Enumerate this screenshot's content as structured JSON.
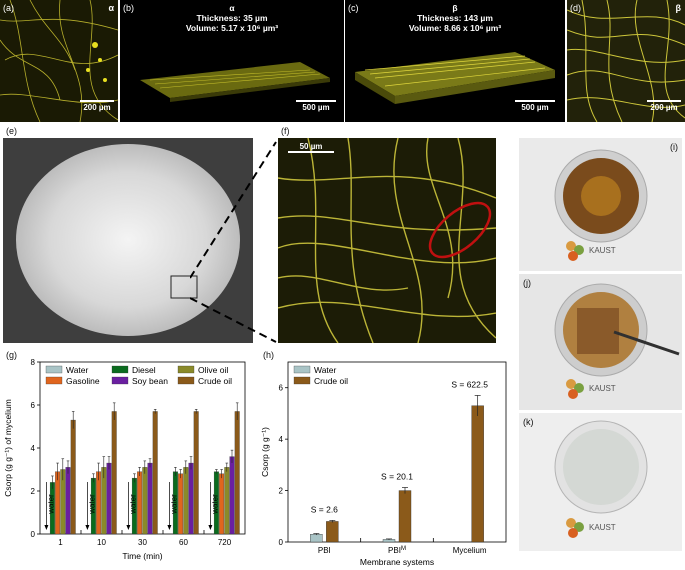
{
  "panels": {
    "a": {
      "label": "(a)",
      "tag": "α",
      "scale": "200 µm"
    },
    "b": {
      "label": "(b)",
      "tag": "α",
      "thickness": "Thickness: 35 µm",
      "volume": "Volume: 5.17 x 10⁶ µm³",
      "scale": "500 µm"
    },
    "c": {
      "label": "(c)",
      "tag": "β",
      "thickness": "Thickness: 143 µm",
      "volume": "Volume: 8.66 x 10⁶ µm³",
      "scale": "500 µm"
    },
    "d": {
      "label": "(d)",
      "tag": "β",
      "scale": "200 µm"
    },
    "e": {
      "label": "(e)"
    },
    "f": {
      "label": "(f)",
      "scale": "50 µm"
    },
    "g": {
      "label": "(g)"
    },
    "h": {
      "label": "(h)"
    },
    "i": {
      "label": "(i)",
      "logo": "KAUST"
    },
    "j": {
      "label": "(j)",
      "logo": "KAUST"
    },
    "k": {
      "label": "(k)",
      "logo": "KAUST"
    }
  },
  "colors": {
    "water": "#a9c4c6",
    "gasoline": "#e0651e",
    "diesel": "#0a6b1e",
    "soy_bean": "#6a1fa0",
    "olive_oil": "#8a8a2a",
    "crude_oil": "#8b5a1a",
    "fluorescence": "#e8e020"
  },
  "chart_data": [
    {
      "id": "g",
      "type": "bar",
      "ylabel": "Csorp (g g⁻¹) of mycelium",
      "xlabel": "Time (min)",
      "ylim": [
        0,
        8
      ],
      "yticks": [
        "0",
        "2",
        "4",
        "6",
        "8"
      ],
      "categories": [
        "1",
        "10",
        "30",
        "60",
        "720"
      ],
      "legend": [
        "Water",
        "Gasoline",
        "Diesel",
        "Soy bean",
        "Olive oil",
        "Crude oil"
      ],
      "annotation": "water",
      "series": [
        {
          "name": "Water",
          "values": [
            0,
            0,
            0,
            0,
            0
          ],
          "errors": [
            0,
            0,
            0,
            0,
            0
          ]
        },
        {
          "name": "Diesel",
          "values": [
            2.4,
            2.6,
            2.6,
            2.9,
            2.9
          ],
          "errors": [
            0.3,
            0.2,
            0.2,
            0.2,
            0.1
          ]
        },
        {
          "name": "Gasoline",
          "values": [
            2.9,
            2.9,
            2.9,
            2.8,
            2.8
          ],
          "errors": [
            0.4,
            0.4,
            0.2,
            0.2,
            0.2
          ]
        },
        {
          "name": "Olive oil",
          "values": [
            3.0,
            3.1,
            3.1,
            3.1,
            3.1
          ],
          "errors": [
            0.5,
            0.5,
            0.3,
            0.3,
            0.2
          ]
        },
        {
          "name": "Soy bean",
          "values": [
            3.1,
            3.3,
            3.3,
            3.3,
            3.6
          ],
          "errors": [
            0.3,
            0.3,
            0.2,
            0.3,
            0.3
          ]
        },
        {
          "name": "Crude oil",
          "values": [
            5.3,
            5.7,
            5.7,
            5.7,
            5.7
          ],
          "errors": [
            0.4,
            0.4,
            0.1,
            0.1,
            0.4
          ]
        }
      ]
    },
    {
      "id": "h",
      "type": "bar",
      "ylabel": "Csorp (g g⁻¹)",
      "xlabel": "Membrane systems",
      "ylim": [
        0,
        7
      ],
      "yticks": [
        "0",
        "2",
        "4",
        "6"
      ],
      "categories": [
        "PBI",
        "PBI",
        "Mycelium"
      ],
      "category_superscripts": [
        "",
        "M",
        ""
      ],
      "legend": [
        "Water",
        "Crude oil"
      ],
      "annotations": [
        "S = 2.6",
        "S = 20.1",
        "S = 622.5"
      ],
      "series": [
        {
          "name": "Water",
          "values": [
            0.3,
            0.1,
            0
          ],
          "errors": [
            0.03,
            0.02,
            0
          ]
        },
        {
          "name": "Crude oil",
          "values": [
            0.8,
            2.0,
            5.3
          ],
          "errors": [
            0.04,
            0.12,
            0.4
          ]
        }
      ]
    }
  ]
}
